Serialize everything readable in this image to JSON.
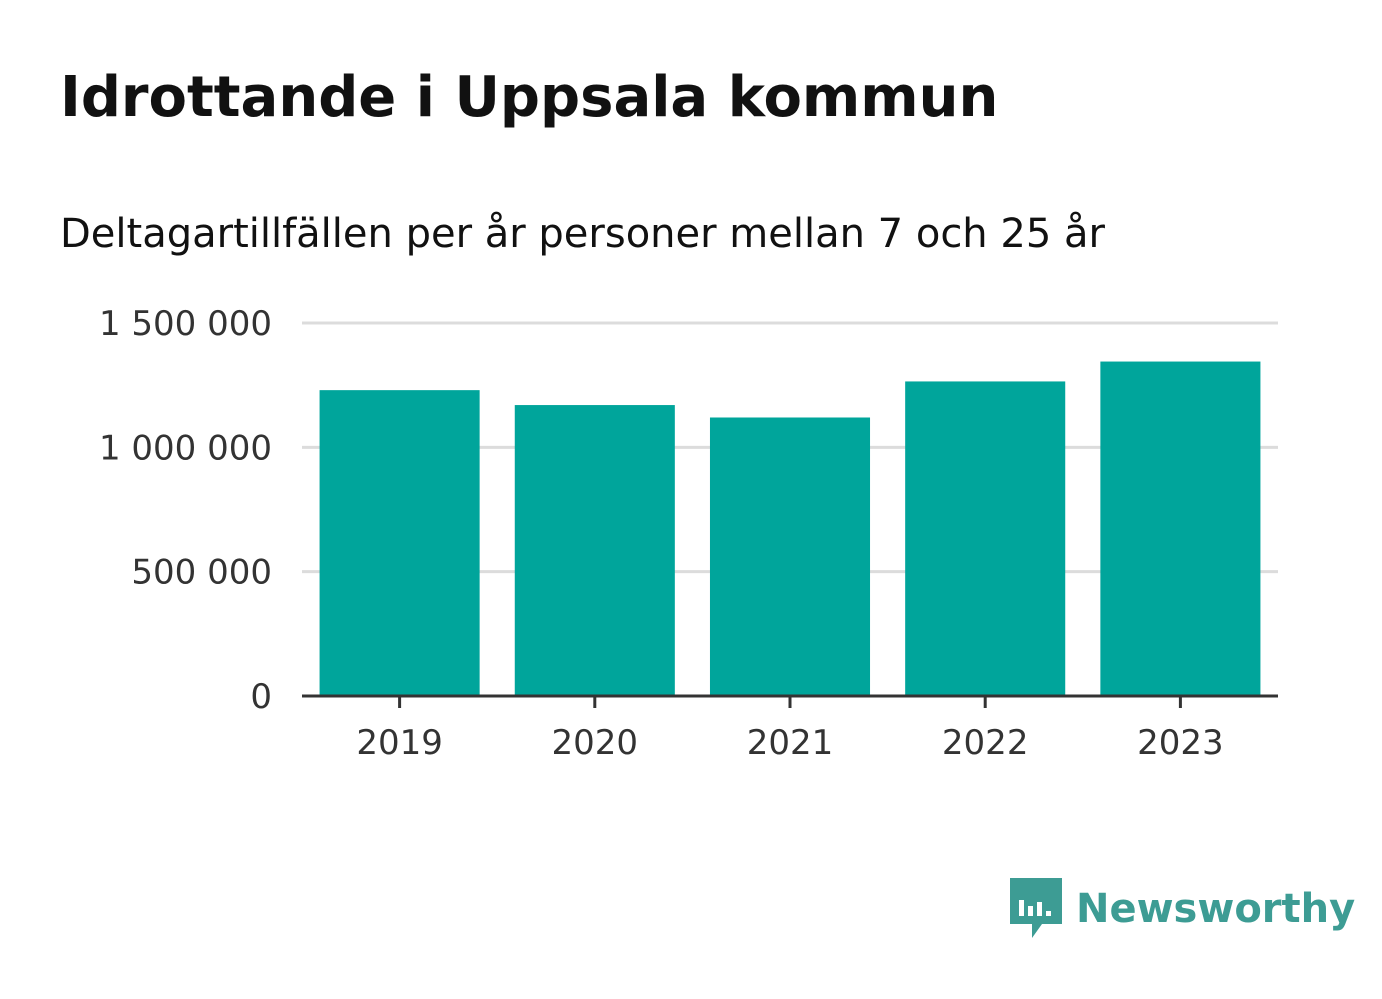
{
  "header": {
    "title": "Idrottande i Uppsala kommun",
    "subtitle": "Deltagartillfällen per år personer mellan 7 och 25 år"
  },
  "chart_data": {
    "type": "bar",
    "title": "Idrottande i Uppsala kommun",
    "subtitle": "Deltagartillfällen per år personer mellan 7 och 25 år",
    "xlabel": "",
    "ylabel": "",
    "categories": [
      "2019",
      "2020",
      "2021",
      "2022",
      "2023"
    ],
    "values": [
      1230000,
      1170000,
      1120000,
      1265000,
      1345000
    ],
    "ylim": [
      0,
      1500000
    ],
    "yticks": [
      0,
      500000,
      1000000,
      1500000
    ],
    "ytick_labels": [
      "0",
      "500 000",
      "1 000 000",
      "1 500 000"
    ],
    "grid": true,
    "legend": "none",
    "colors": {
      "bar": "#00a59b",
      "grid": "#dcdcdc",
      "axis": "#333333"
    }
  },
  "brand": {
    "name": "Newsworthy",
    "icon": "newsworthy-logo-icon",
    "color": "#3d9c94"
  }
}
